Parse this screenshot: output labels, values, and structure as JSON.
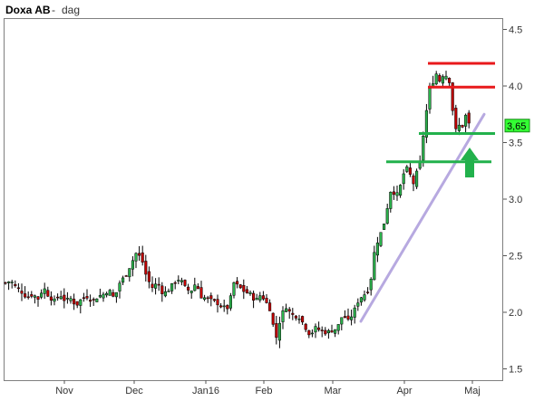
{
  "header": {
    "title": "Doxa AB",
    "separator": "-",
    "interval": "dag"
  },
  "colors": {
    "up": "#2bb24c",
    "down": "#c40000",
    "wick": "#000000",
    "resistance": "#e8191b",
    "support": "#22b14c",
    "trendline": "#b7a9e0",
    "arrow": "#22b14c",
    "price_badge": "#33ff33",
    "frame": "#7f7f7f"
  },
  "chart_data": {
    "type": "candlestick",
    "title": "Doxa AB - dag",
    "x_tick_labels": [
      "Nov",
      "Dec",
      "Jan16",
      "Feb",
      "Mar",
      "Apr",
      "Maj"
    ],
    "y_ticks": [
      1.5,
      2.0,
      2.5,
      3.0,
      3.5,
      4.0,
      4.5
    ],
    "y_tick_labels": [
      "1.5",
      "2.0",
      "2.5",
      "3.0",
      "3.5",
      "4.0",
      "4.5"
    ],
    "ylim": [
      1.4,
      4.6
    ],
    "last_price": 3.65,
    "last_price_label": "3,65",
    "grid": false,
    "annotations": {
      "resistance_lines": [
        4.2,
        3.99
      ],
      "support_lines": [
        3.58,
        3.33
      ],
      "trendline": [
        {
          "x": 1.0,
          "y": 1.92
        },
        {
          "x": 1.0,
          "y": 3.75
        }
      ],
      "arrow": "up, below last price"
    }
  }
}
